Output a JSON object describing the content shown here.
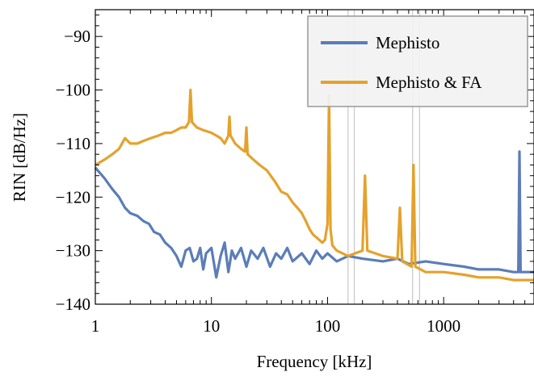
{
  "chart_data": {
    "type": "line",
    "title": "",
    "xlabel": "Frequency [kHz]",
    "ylabel": "RIN [dB/Hz]",
    "x_scale": "log",
    "xlim": [
      1,
      6000
    ],
    "ylim": [
      -140,
      -85
    ],
    "x_ticks": [
      {
        "value": 1,
        "label": "1"
      },
      {
        "value": 10,
        "label": "10"
      },
      {
        "value": 100,
        "label": "100"
      },
      {
        "value": 1000,
        "label": "1000"
      }
    ],
    "y_ticks": [
      {
        "value": -90,
        "label": "−90"
      },
      {
        "value": -100,
        "label": "−100"
      },
      {
        "value": -110,
        "label": "−110"
      },
      {
        "value": -120,
        "label": "−120"
      },
      {
        "value": -130,
        "label": "−130"
      },
      {
        "value": -140,
        "label": "−140"
      }
    ],
    "vertical_lines_x": [
      150,
      170,
      540,
      620
    ],
    "legend_position": "top-right",
    "grid": false,
    "series": [
      {
        "name": "Mephisto",
        "color": "#5b7db8",
        "points": [
          [
            1.0,
            -114.5
          ],
          [
            1.2,
            -116.5
          ],
          [
            1.4,
            -118.5
          ],
          [
            1.6,
            -120
          ],
          [
            1.8,
            -122
          ],
          [
            2.0,
            -123
          ],
          [
            2.3,
            -123.5
          ],
          [
            2.6,
            -124.5
          ],
          [
            2.9,
            -125
          ],
          [
            3.2,
            -126.5
          ],
          [
            3.6,
            -127
          ],
          [
            4.0,
            -128.5
          ],
          [
            4.5,
            -129.5
          ],
          [
            5.0,
            -131
          ],
          [
            5.5,
            -133
          ],
          [
            6.0,
            -130
          ],
          [
            6.5,
            -129.5
          ],
          [
            7.0,
            -132
          ],
          [
            7.5,
            -131.5
          ],
          [
            8.0,
            -129.5
          ],
          [
            8.5,
            -133.5
          ],
          [
            9.0,
            -130.5
          ],
          [
            10.0,
            -129.5
          ],
          [
            11.0,
            -135
          ],
          [
            12.0,
            -131
          ],
          [
            13.0,
            -128.5
          ],
          [
            14.0,
            -134
          ],
          [
            15.0,
            -130
          ],
          [
            16.0,
            -131.5
          ],
          [
            18.0,
            -129.5
          ],
          [
            20.0,
            -133
          ],
          [
            22.0,
            -130
          ],
          [
            25.0,
            -131.5
          ],
          [
            28.0,
            -129.5
          ],
          [
            32.0,
            -133
          ],
          [
            36.0,
            -130.5
          ],
          [
            40.0,
            -131.5
          ],
          [
            45.0,
            -129.5
          ],
          [
            50.0,
            -132
          ],
          [
            60.0,
            -130.5
          ],
          [
            70.0,
            -132.5
          ],
          [
            80.0,
            -130
          ],
          [
            90.0,
            -131.5
          ],
          [
            100.0,
            -130.5
          ],
          [
            120.0,
            -132
          ],
          [
            150.0,
            -131
          ],
          [
            200.0,
            -131.5
          ],
          [
            300.0,
            -132
          ],
          [
            400.0,
            -131.5
          ],
          [
            500.0,
            -132.5
          ],
          [
            700.0,
            -132
          ],
          [
            1000.0,
            -132.5
          ],
          [
            1500.0,
            -133
          ],
          [
            2000.0,
            -133.5
          ],
          [
            3000.0,
            -133.5
          ],
          [
            4000.0,
            -134
          ],
          [
            4400.0,
            -134
          ],
          [
            4500.0,
            -111.5
          ],
          [
            4600.0,
            -134
          ],
          [
            6000.0,
            -134
          ]
        ]
      },
      {
        "name": "Mephisto & FA",
        "color": "#e4a22c",
        "points": [
          [
            1.0,
            -114
          ],
          [
            1.2,
            -113
          ],
          [
            1.4,
            -112
          ],
          [
            1.6,
            -111
          ],
          [
            1.8,
            -109
          ],
          [
            2.0,
            -110
          ],
          [
            2.3,
            -110
          ],
          [
            2.6,
            -109.5
          ],
          [
            3.0,
            -109
          ],
          [
            3.5,
            -108.5
          ],
          [
            4.0,
            -108
          ],
          [
            4.5,
            -108
          ],
          [
            5.0,
            -107.5
          ],
          [
            5.5,
            -107
          ],
          [
            6.0,
            -107
          ],
          [
            6.4,
            -106
          ],
          [
            6.6,
            -100
          ],
          [
            6.8,
            -106
          ],
          [
            7.5,
            -107
          ],
          [
            8.5,
            -107.5
          ],
          [
            10.0,
            -108
          ],
          [
            11.0,
            -108.5
          ],
          [
            12.0,
            -109
          ],
          [
            13.0,
            -110
          ],
          [
            14.0,
            -108.5
          ],
          [
            14.3,
            -105
          ],
          [
            14.6,
            -108.5
          ],
          [
            16.0,
            -110
          ],
          [
            18.0,
            -111
          ],
          [
            19.5,
            -111.5
          ],
          [
            20.0,
            -107
          ],
          [
            20.5,
            -112
          ],
          [
            23.0,
            -113
          ],
          [
            26.0,
            -114
          ],
          [
            30.0,
            -115
          ],
          [
            35.0,
            -117
          ],
          [
            40.0,
            -119
          ],
          [
            45.0,
            -119.5
          ],
          [
            50.0,
            -121
          ],
          [
            55.0,
            -122
          ],
          [
            60.0,
            -123
          ],
          [
            65.0,
            -124.5
          ],
          [
            70.0,
            -126
          ],
          [
            75.0,
            -127
          ],
          [
            80.0,
            -127.5
          ],
          [
            85.0,
            -128
          ],
          [
            90.0,
            -128.5
          ],
          [
            95.0,
            -128
          ],
          [
            100.0,
            -125
          ],
          [
            103.0,
            -101
          ],
          [
            106.0,
            -126
          ],
          [
            110.0,
            -129
          ],
          [
            120.0,
            -130
          ],
          [
            150.0,
            -131
          ],
          [
            200.0,
            -130
          ],
          [
            210.0,
            -116
          ],
          [
            220.0,
            -130
          ],
          [
            300.0,
            -131
          ],
          [
            400.0,
            -131.5
          ],
          [
            420.0,
            -122
          ],
          [
            440.0,
            -132
          ],
          [
            530.0,
            -133
          ],
          [
            550.0,
            -114
          ],
          [
            570.0,
            -133
          ],
          [
            700.0,
            -134
          ],
          [
            1000.0,
            -134
          ],
          [
            1500.0,
            -134.5
          ],
          [
            2000.0,
            -135
          ],
          [
            3000.0,
            -135
          ],
          [
            4000.0,
            -135.5
          ],
          [
            5000.0,
            -135.5
          ],
          [
            6000.0,
            -135.5
          ]
        ]
      }
    ]
  }
}
